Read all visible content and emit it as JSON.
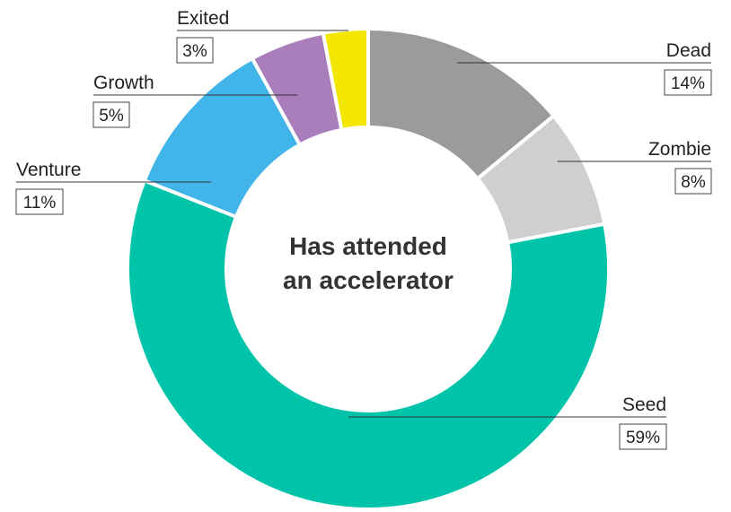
{
  "chart_data": {
    "type": "pie",
    "center_label_line1": "Has attended",
    "center_label_line2": "an accelerator",
    "slices": [
      {
        "name": "Dead",
        "value": 14,
        "label": "14%",
        "color": "#9b9b9b"
      },
      {
        "name": "Zombie",
        "value": 8,
        "label": "8%",
        "color": "#cfcfcf"
      },
      {
        "name": "Seed",
        "value": 59,
        "label": "59%",
        "color": "#00c4aa"
      },
      {
        "name": "Venture",
        "value": 11,
        "label": "11%",
        "color": "#41b4e9"
      },
      {
        "name": "Growth",
        "value": 5,
        "label": "5%",
        "color": "#a97ebb"
      },
      {
        "name": "Exited",
        "value": 3,
        "label": "3%",
        "color": "#f3e600"
      }
    ]
  }
}
